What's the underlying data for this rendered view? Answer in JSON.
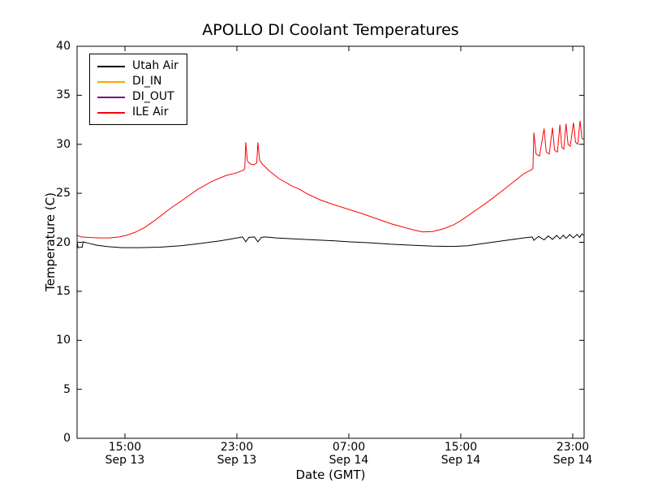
{
  "figure": {
    "title": "APOLLO DI Coolant Temperatures"
  },
  "chart_data": {
    "type": "line",
    "title": "APOLLO DI Coolant Temperatures",
    "xlabel": "Date (GMT)",
    "ylabel": "Temperature (C)",
    "x_unit": "hours since Sep 13 00:00 GMT",
    "xlim": [
      11.58,
      47.81
    ],
    "ylim": [
      0,
      40
    ],
    "grid": false,
    "legend_position": "upper left",
    "x_ticks": [
      {
        "hour": 15,
        "time": "15:00",
        "date": "Sep 13"
      },
      {
        "hour": 23,
        "time": "23:00",
        "date": "Sep 13"
      },
      {
        "hour": 31,
        "time": "07:00",
        "date": "Sep 14"
      },
      {
        "hour": 39,
        "time": "15:00",
        "date": "Sep 14"
      },
      {
        "hour": 47,
        "time": "23:00",
        "date": "Sep 14"
      }
    ],
    "y_ticks": [
      0,
      5,
      10,
      15,
      20,
      25,
      30,
      35,
      40
    ],
    "legend": [
      {
        "label": "Utah Air",
        "color": "#000000"
      },
      {
        "label": "DI_IN",
        "color": "#ffa500"
      },
      {
        "label": "DI_OUT",
        "color": "#800080"
      },
      {
        "label": "ILE Air",
        "color": "#ff0000"
      }
    ],
    "series": [
      {
        "name": "Utah Air",
        "color": "#000000",
        "points": [
          [
            11.6,
            19.9
          ],
          [
            11.65,
            19.45
          ],
          [
            11.95,
            19.5
          ],
          [
            12.0,
            20.05
          ],
          [
            12.4,
            19.9
          ],
          [
            13.0,
            19.7
          ],
          [
            13.8,
            19.55
          ],
          [
            14.8,
            19.45
          ],
          [
            16.0,
            19.45
          ],
          [
            17.5,
            19.5
          ],
          [
            19.0,
            19.65
          ],
          [
            20.5,
            19.9
          ],
          [
            21.8,
            20.15
          ],
          [
            22.8,
            20.4
          ],
          [
            23.4,
            20.55
          ],
          [
            23.64,
            20.05
          ],
          [
            23.85,
            20.5
          ],
          [
            24.25,
            20.55
          ],
          [
            24.5,
            20.05
          ],
          [
            24.75,
            20.5
          ],
          [
            25.0,
            20.55
          ],
          [
            25.8,
            20.45
          ],
          [
            27.0,
            20.35
          ],
          [
            28.5,
            20.25
          ],
          [
            30.0,
            20.15
          ],
          [
            31.0,
            20.05
          ],
          [
            32.5,
            19.95
          ],
          [
            34.0,
            19.8
          ],
          [
            35.5,
            19.7
          ],
          [
            37.0,
            19.6
          ],
          [
            38.5,
            19.58
          ],
          [
            39.5,
            19.65
          ],
          [
            40.5,
            19.85
          ],
          [
            41.5,
            20.05
          ],
          [
            42.5,
            20.25
          ],
          [
            43.5,
            20.45
          ],
          [
            44.1,
            20.55
          ],
          [
            44.22,
            20.2
          ],
          [
            44.55,
            20.6
          ],
          [
            44.95,
            20.25
          ],
          [
            45.25,
            20.65
          ],
          [
            45.55,
            20.3
          ],
          [
            45.85,
            20.7
          ],
          [
            46.08,
            20.35
          ],
          [
            46.32,
            20.72
          ],
          [
            46.52,
            20.4
          ],
          [
            46.78,
            20.78
          ],
          [
            47.05,
            20.45
          ],
          [
            47.3,
            20.8
          ],
          [
            47.5,
            20.5
          ],
          [
            47.65,
            20.85
          ],
          [
            47.8,
            20.7
          ]
        ]
      },
      {
        "name": "DI_IN",
        "color": "#ffa500",
        "points": []
      },
      {
        "name": "DI_OUT",
        "color": "#800080",
        "points": []
      },
      {
        "name": "ILE Air",
        "color": "#ff0000",
        "points": [
          [
            11.6,
            20.7
          ],
          [
            11.85,
            20.55
          ],
          [
            12.4,
            20.5
          ],
          [
            13.2,
            20.45
          ],
          [
            13.9,
            20.45
          ],
          [
            14.6,
            20.55
          ],
          [
            15.1,
            20.7
          ],
          [
            15.7,
            21.0
          ],
          [
            16.4,
            21.5
          ],
          [
            17.2,
            22.3
          ],
          [
            18.2,
            23.4
          ],
          [
            19.2,
            24.4
          ],
          [
            20.2,
            25.4
          ],
          [
            21.2,
            26.2
          ],
          [
            22.2,
            26.8
          ],
          [
            23.0,
            27.1
          ],
          [
            23.45,
            27.35
          ],
          [
            23.56,
            27.5
          ],
          [
            23.64,
            30.2
          ],
          [
            23.75,
            28.3
          ],
          [
            23.95,
            28.0
          ],
          [
            24.2,
            27.9
          ],
          [
            24.42,
            28.1
          ],
          [
            24.5,
            30.2
          ],
          [
            24.62,
            28.4
          ],
          [
            24.8,
            28.0
          ],
          [
            25.3,
            27.3
          ],
          [
            26.0,
            26.5
          ],
          [
            27.0,
            25.7
          ],
          [
            27.5,
            25.4
          ],
          [
            28.0,
            24.95
          ],
          [
            29.0,
            24.3
          ],
          [
            30.0,
            23.8
          ],
          [
            31.0,
            23.35
          ],
          [
            32.0,
            22.9
          ],
          [
            33.0,
            22.4
          ],
          [
            34.0,
            21.9
          ],
          [
            35.0,
            21.5
          ],
          [
            35.8,
            21.2
          ],
          [
            36.3,
            21.05
          ],
          [
            37.0,
            21.1
          ],
          [
            37.8,
            21.4
          ],
          [
            38.5,
            21.8
          ],
          [
            39.0,
            22.2
          ],
          [
            40.0,
            23.2
          ],
          [
            41.0,
            24.2
          ],
          [
            42.0,
            25.3
          ],
          [
            42.8,
            26.2
          ],
          [
            43.5,
            27.0
          ],
          [
            44.05,
            27.4
          ],
          [
            44.15,
            27.5
          ],
          [
            44.22,
            31.2
          ],
          [
            44.38,
            29.0
          ],
          [
            44.62,
            28.8
          ],
          [
            44.95,
            31.6
          ],
          [
            45.1,
            29.2
          ],
          [
            45.32,
            29.0
          ],
          [
            45.55,
            31.7
          ],
          [
            45.7,
            29.4
          ],
          [
            45.9,
            29.2
          ],
          [
            46.08,
            32.0
          ],
          [
            46.22,
            29.7
          ],
          [
            46.36,
            29.5
          ],
          [
            46.52,
            32.1
          ],
          [
            46.66,
            30.0
          ],
          [
            46.82,
            29.8
          ],
          [
            47.05,
            32.2
          ],
          [
            47.2,
            30.2
          ],
          [
            47.36,
            30.0
          ],
          [
            47.52,
            32.4
          ],
          [
            47.66,
            30.6
          ],
          [
            47.8,
            30.5
          ]
        ]
      }
    ]
  }
}
